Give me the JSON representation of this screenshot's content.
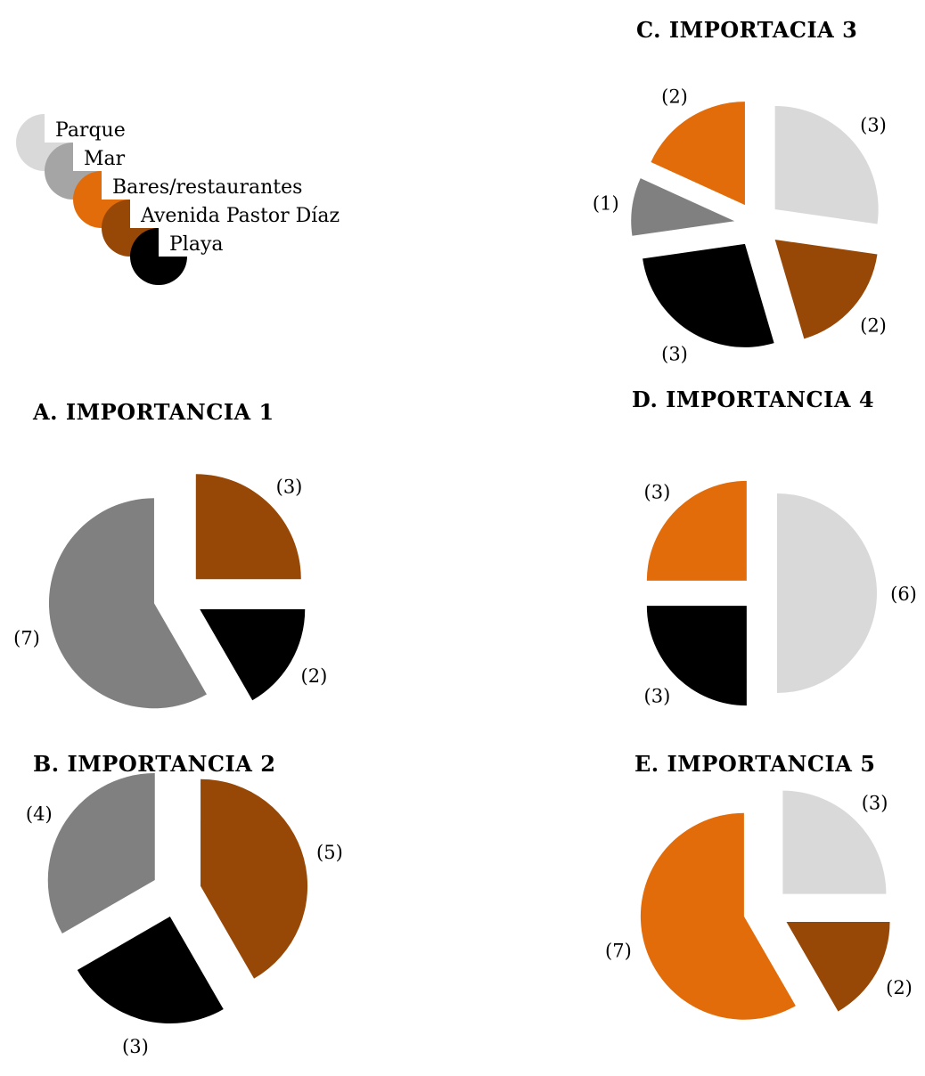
{
  "legend": {
    "items": [
      {
        "label": "Parque",
        "color": "#d9d9d9"
      },
      {
        "label": "Mar",
        "color": "#a5a5a5"
      },
      {
        "label": "Bares/restaurantes",
        "color": "#e36c0a"
      },
      {
        "label": "Avenida Pastor Díaz",
        "color": "#974806"
      },
      {
        "label": "Playa",
        "color": "#000000"
      }
    ]
  },
  "chart_data": [
    {
      "type": "pie",
      "title_letter": "A.",
      "title_word": "IMPORTANCIA",
      "title_number": "1",
      "slices": [
        {
          "category": "Avenida Pastor Díaz",
          "value": 3,
          "label": "(3)",
          "color": "#974806"
        },
        {
          "category": "Playa",
          "value": 2,
          "label": "(2)",
          "color": "#000000"
        },
        {
          "category": "Mar",
          "value": 7,
          "label": "(7)",
          "color": "#808080"
        }
      ]
    },
    {
      "type": "pie",
      "title_letter": "B.",
      "title_word": "IMPORTANCIA",
      "title_number": "2",
      "slices": [
        {
          "category": "Avenida Pastor Díaz",
          "value": 5,
          "label": "(5)",
          "color": "#974806"
        },
        {
          "category": "Playa",
          "value": 3,
          "label": "(3)",
          "color": "#000000"
        },
        {
          "category": "Mar",
          "value": 4,
          "label": "(4)",
          "color": "#808080"
        }
      ]
    },
    {
      "type": "pie",
      "title_letter": "C.",
      "title_word": "IMPORTACIA",
      "title_number": "3",
      "slices": [
        {
          "category": "Parque",
          "value": 3,
          "label": "(3)",
          "color": "#d9d9d9"
        },
        {
          "category": "Avenida Pastor Díaz",
          "value": 2,
          "label": "(2)",
          "color": "#974806"
        },
        {
          "category": "Playa",
          "value": 3,
          "label": "(3)",
          "color": "#000000"
        },
        {
          "category": "Mar",
          "value": 1,
          "label": "(1)",
          "color": "#808080"
        },
        {
          "category": "Bares/restaurantes",
          "value": 2,
          "label": "(2)",
          "color": "#e36c0a"
        }
      ]
    },
    {
      "type": "pie",
      "title_letter": "D.",
      "title_word": "IMPORTANCIA",
      "title_number": "4",
      "slices": [
        {
          "category": "Parque",
          "value": 6,
          "label": "(6)",
          "color": "#d9d9d9"
        },
        {
          "category": "Playa",
          "value": 3,
          "label": "(3)",
          "color": "#000000"
        },
        {
          "category": "Bares/restaurantes",
          "value": 3,
          "label": "(3)",
          "color": "#e36c0a"
        }
      ]
    },
    {
      "type": "pie",
      "title_letter": "E.",
      "title_word": "IMPORTANCIA",
      "title_number": "5",
      "slices": [
        {
          "category": "Parque",
          "value": 3,
          "label": "(3)",
          "color": "#d9d9d9"
        },
        {
          "category": "Avenida Pastor Díaz",
          "value": 2,
          "label": "(2)",
          "color": "#974806"
        },
        {
          "category": "Bares/restaurantes",
          "value": 7,
          "label": "(7)",
          "color": "#e36c0a"
        }
      ]
    }
  ]
}
